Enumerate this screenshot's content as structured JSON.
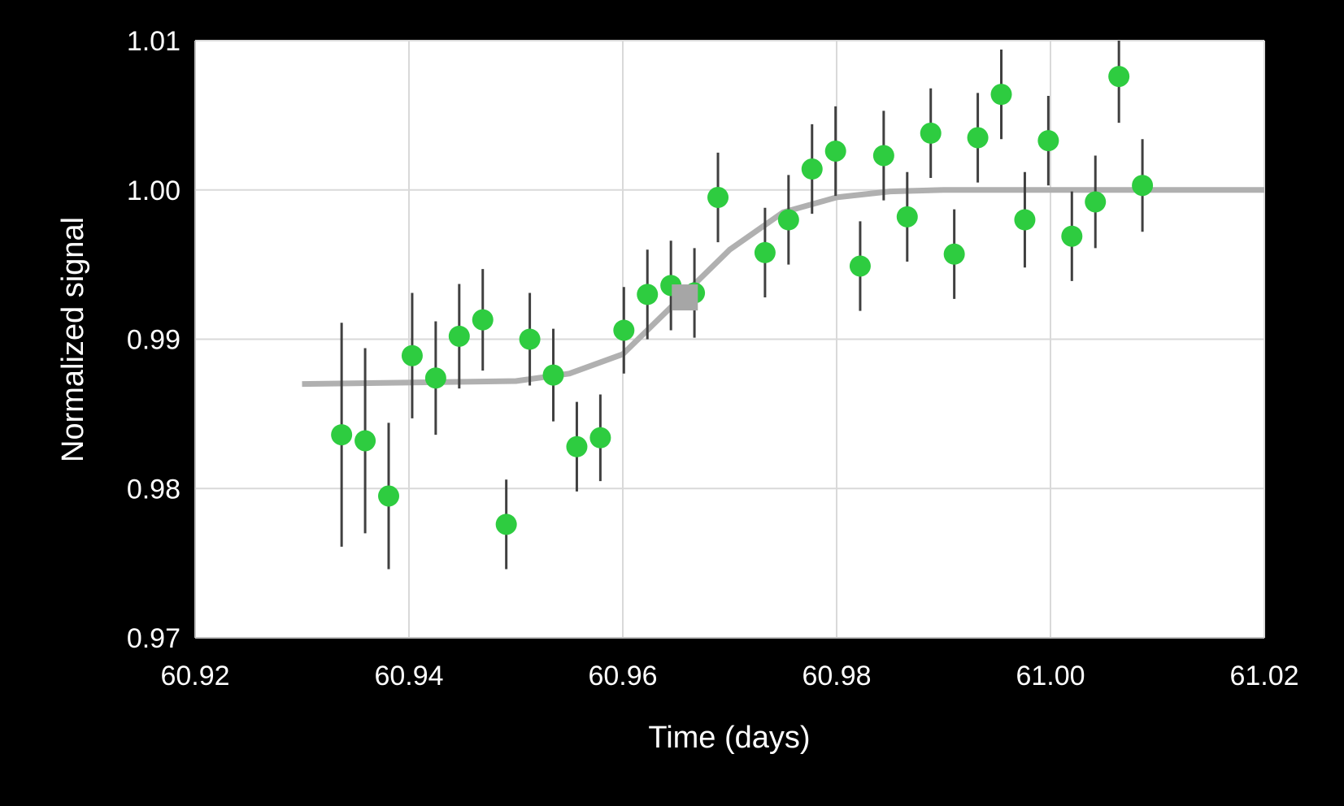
{
  "chart_data": {
    "type": "scatter",
    "xlabel": "Time (days)",
    "ylabel": "Normalized signal",
    "xlim": [
      60.92,
      61.02
    ],
    "ylim": [
      0.97,
      1.01
    ],
    "x_ticks": [
      "60.92",
      "60.94",
      "60.96",
      "60.98",
      "61.00",
      "61.02"
    ],
    "y_ticks": [
      "0.97",
      "0.98",
      "0.99",
      "1.00",
      "1.01"
    ],
    "grid": true,
    "colors": {
      "background": "#000000",
      "plot_area": "#ffffff",
      "grid": "#d9d9d9",
      "points": "#2ecc40",
      "error_bars": "#404040",
      "model_line": "#b0b0b0",
      "midpoint_marker": "#a6a6a6"
    },
    "series": [
      {
        "type": "scatter",
        "x": [
          60.9337,
          60.9359,
          60.9381,
          60.9403,
          60.9425,
          60.9447,
          60.9469,
          60.9491,
          60.9513,
          60.9535,
          60.9557,
          60.9579,
          60.9601,
          60.9623,
          60.9645,
          60.9667,
          60.9689,
          60.9733,
          60.9755,
          60.9777,
          60.9799,
          60.9822,
          60.9844,
          60.9866,
          60.9888,
          60.991,
          60.9932,
          60.9954,
          60.9976,
          60.9998,
          61.002,
          61.0042,
          61.0064,
          61.0086
        ],
        "y": [
          0.9836,
          0.9832,
          0.9795,
          0.9889,
          0.9874,
          0.9902,
          0.9913,
          0.9776,
          0.99,
          0.9876,
          0.9828,
          0.9834,
          0.9906,
          0.993,
          0.9936,
          0.9931,
          0.9995,
          0.9958,
          0.998,
          1.0014,
          1.0026,
          0.9949,
          1.0023,
          0.9982,
          1.0038,
          0.9957,
          1.0035,
          1.0064,
          0.998,
          1.0033,
          0.9969,
          0.9992,
          1.0076,
          1.0003
        ],
        "yerr": [
          0.0075,
          0.0062,
          0.0049,
          0.0042,
          0.0038,
          0.0035,
          0.0034,
          0.003,
          0.0031,
          0.0031,
          0.003,
          0.0029,
          0.0029,
          0.003,
          0.003,
          0.003,
          0.003,
          0.003,
          0.003,
          0.003,
          0.003,
          0.003,
          0.003,
          0.003,
          0.003,
          0.003,
          0.003,
          0.003,
          0.0032,
          0.003,
          0.003,
          0.0031,
          0.0031,
          0.0031
        ]
      },
      {
        "type": "line",
        "x": [
          60.93,
          60.95,
          60.955,
          60.96,
          60.965,
          60.97,
          60.975,
          60.98,
          60.985,
          60.99,
          60.995,
          61.0,
          61.02
        ],
        "y": [
          0.987,
          0.9872,
          0.9877,
          0.989,
          0.9925,
          0.996,
          0.9985,
          0.9995,
          0.9999,
          1.0,
          1.0,
          1.0,
          1.0
        ]
      },
      {
        "type": "marker",
        "x": [
          60.9658
        ],
        "y": [
          0.9928
        ]
      }
    ]
  }
}
